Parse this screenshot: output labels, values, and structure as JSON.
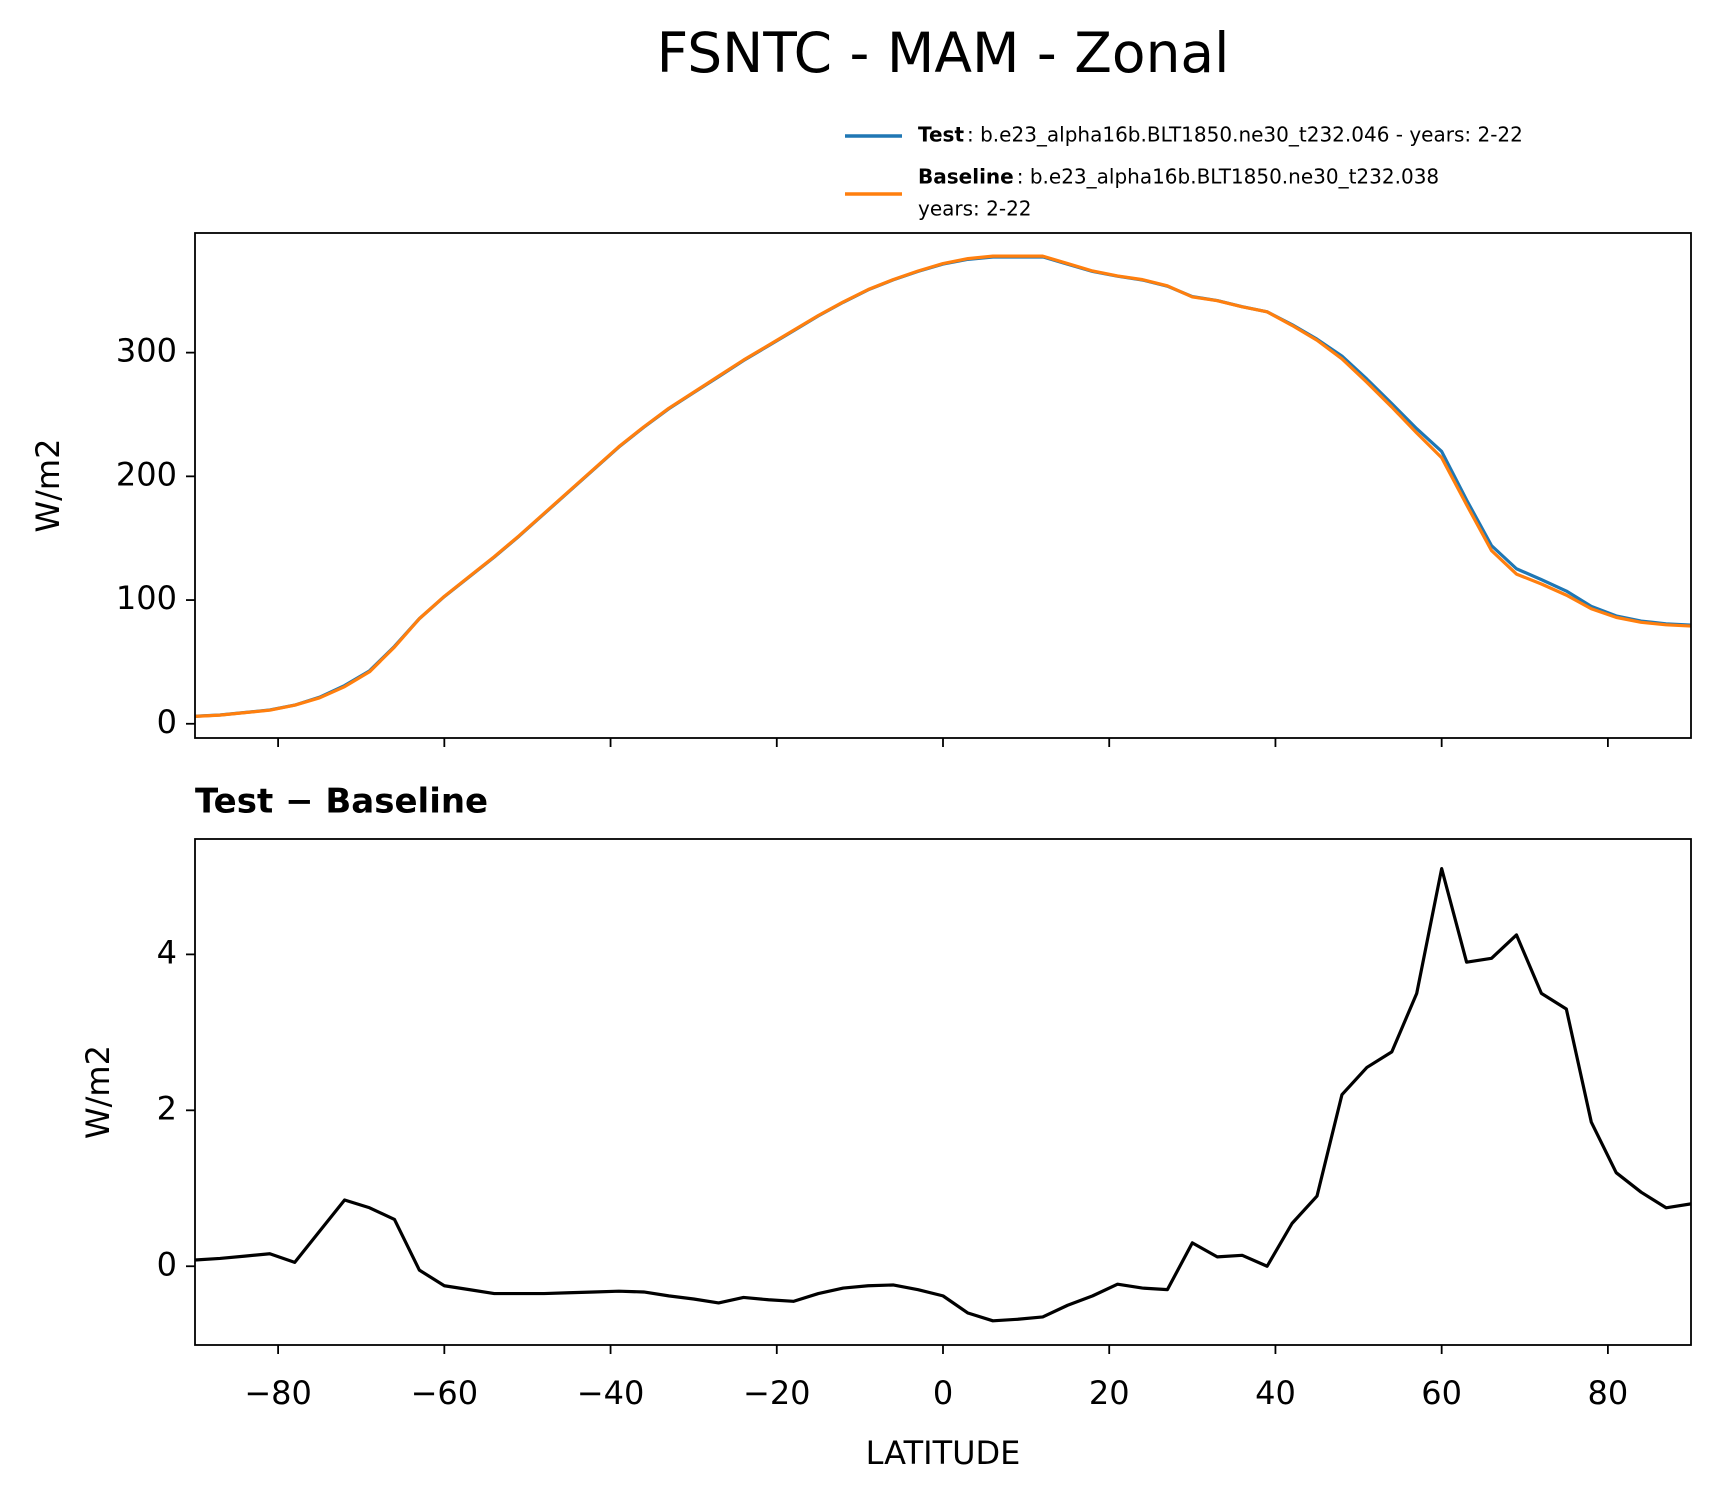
{
  "chart_data": [
    {
      "type": "line",
      "title": "FSNTC - MAM - Zonal",
      "ylabel": "W/m2",
      "x": [
        -90,
        -87,
        -84,
        -81,
        -78,
        -75,
        -72,
        -69,
        -66,
        -63,
        -60,
        -57,
        -54,
        -51,
        -48,
        -45,
        -42,
        -39,
        -36,
        -33,
        -30,
        -27,
        -24,
        -21,
        -18,
        -15,
        -12,
        -9,
        -6,
        -3,
        0,
        3,
        6,
        9,
        12,
        15,
        18,
        21,
        24,
        27,
        30,
        33,
        36,
        39,
        42,
        45,
        48,
        51,
        54,
        57,
        60,
        63,
        66,
        69,
        72,
        75,
        78,
        81,
        84,
        87,
        90
      ],
      "series": [
        {
          "name": "Test",
          "description": [
            ": b.e23_alpha16b.BLT1850.ne30_t232.046 - years: 2-22"
          ],
          "color": "#1f77b4",
          "values": [
            6.1,
            7.1,
            9.1,
            11.2,
            15.1,
            21.5,
            30.9,
            42.8,
            62.6,
            85.0,
            102.8,
            118.7,
            134.7,
            151.7,
            169.7,
            187.7,
            205.7,
            223.7,
            239.7,
            254.6,
            267.6,
            280.5,
            293.6,
            305.6,
            317.6,
            329.7,
            340.7,
            350.8,
            358.8,
            365.7,
            371.6,
            375.4,
            377.3,
            377.3,
            377.4,
            371.5,
            365.6,
            361.8,
            358.7,
            353.7,
            345.3,
            342.1,
            337.1,
            333.0,
            322.6,
            310.9,
            297.2,
            278.6,
            258.8,
            238.5,
            220.1,
            180.9,
            144.0,
            125.3,
            116.5,
            107.3,
            94.9,
            87.2,
            83.0,
            80.8,
            79.8
          ]
        },
        {
          "name": "Baseline",
          "description": [
            ": b.e23_alpha16b.BLT1850.ne30_t232.038",
            "years: 2-22"
          ],
          "color": "#ff7f0e",
          "values": [
            6,
            7,
            9,
            11,
            15,
            21,
            30,
            42,
            62,
            85,
            103,
            119,
            135,
            152,
            170,
            188,
            206,
            224,
            240,
            255,
            268,
            281,
            294,
            306,
            318,
            330,
            341,
            351,
            359,
            366,
            372,
            376,
            378,
            378,
            378,
            372,
            366,
            362,
            359,
            354,
            345,
            342,
            337,
            333,
            322,
            310,
            295,
            276,
            256,
            235,
            215,
            177,
            140,
            121,
            113,
            104,
            93,
            86,
            82,
            80,
            79
          ]
        }
      ],
      "xlim": [
        -90,
        90
      ],
      "xticks": [
        -80,
        -60,
        -40,
        -20,
        0,
        20,
        40,
        60,
        80
      ],
      "ylim": [
        -11.5,
        396.7
      ],
      "yticks": [
        0,
        100,
        200,
        300
      ]
    },
    {
      "type": "line",
      "title": "Test − Baseline",
      "ylabel": "W/m2",
      "xlabel": "LATITUDE",
      "x": [
        -90,
        -87,
        -84,
        -81,
        -78,
        -75,
        -72,
        -69,
        -66,
        -63,
        -60,
        -57,
        -54,
        -51,
        -48,
        -45,
        -42,
        -39,
        -36,
        -33,
        -30,
        -27,
        -24,
        -21,
        -18,
        -15,
        -12,
        -9,
        -6,
        -3,
        0,
        3,
        6,
        9,
        12,
        15,
        18,
        21,
        24,
        27,
        30,
        33,
        36,
        39,
        42,
        45,
        48,
        51,
        54,
        57,
        60,
        63,
        66,
        69,
        72,
        75,
        78,
        81,
        84,
        87,
        90
      ],
      "series": [
        {
          "color": "#000000",
          "values": [
            0.08,
            0.1,
            0.13,
            0.16,
            0.05,
            0.45,
            0.85,
            0.75,
            0.6,
            -0.05,
            -0.25,
            -0.3,
            -0.35,
            -0.35,
            -0.35,
            -0.34,
            -0.33,
            -0.32,
            -0.33,
            -0.38,
            -0.42,
            -0.47,
            -0.4,
            -0.43,
            -0.45,
            -0.35,
            -0.28,
            -0.25,
            -0.24,
            -0.3,
            -0.38,
            -0.6,
            -0.7,
            -0.68,
            -0.65,
            -0.5,
            -0.38,
            -0.23,
            -0.28,
            -0.3,
            0.3,
            0.12,
            0.14,
            0.0,
            0.55,
            0.9,
            2.2,
            2.55,
            2.75,
            3.5,
            5.1,
            3.9,
            3.95,
            4.25,
            3.5,
            3.3,
            1.85,
            1.2,
            0.95,
            0.75,
            0.8
          ]
        }
      ],
      "xlim": [
        -90,
        90
      ],
      "xticks": [
        {
          "value": -80,
          "label": "−80"
        },
        {
          "value": -60,
          "label": "−60"
        },
        {
          "value": -40,
          "label": "−40"
        },
        {
          "value": -20,
          "label": "−20"
        },
        0,
        20,
        40,
        60,
        80
      ],
      "ylim": [
        -1.01,
        5.48
      ],
      "yticks": [
        0,
        2,
        4
      ]
    }
  ]
}
